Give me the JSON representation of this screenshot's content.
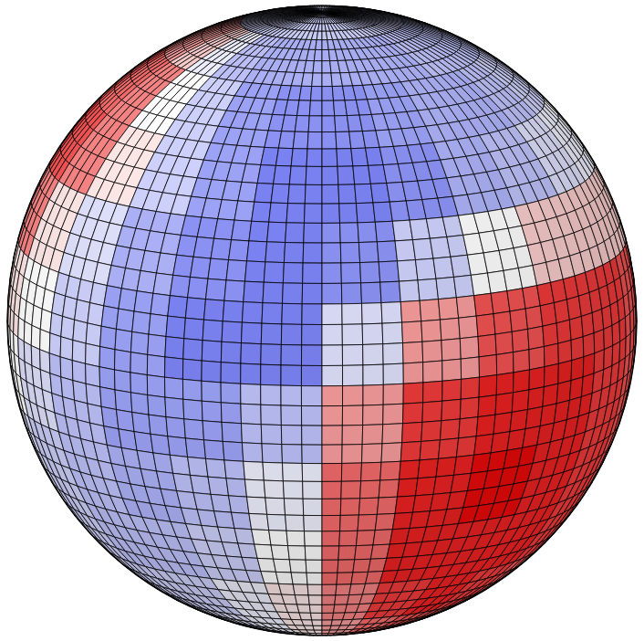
{
  "chart_data": {
    "type": "sphere",
    "grid": true,
    "tick_labels": false,
    "clim": [
      -1,
      1
    ],
    "cap": -0.3,
    "lat": [
      67.5,
      52.5,
      37.5,
      22.5,
      7.5,
      -7.5,
      -22.5,
      -37.5,
      -52.5,
      -67.5,
      -82.5
    ],
    "lon": [
      -127.5,
      -112.5,
      -97.5,
      -82.5,
      -67.5,
      -52.5,
      -37.5,
      -22.5,
      -7.5,
      7.5,
      22.5,
      37.5,
      52.5,
      67.5,
      82.5,
      97.5,
      112.5,
      127.5
    ],
    "cells": [
      [
        0.5,
        0.5,
        0.5,
        0.4,
        0.2,
        -0.1,
        -0.4,
        -0.5,
        -0.5,
        -0.5,
        -0.5,
        -0.5,
        -0.4,
        -0.4,
        -0.4,
        -0.4,
        -0.3,
        -0.3
      ],
      [
        0.7,
        0.7,
        0.7,
        0.6,
        0.5,
        0.0,
        -0.3,
        -0.6,
        -0.7,
        -0.7,
        -0.6,
        -0.5,
        -0.5,
        -0.4,
        -0.3,
        -0.3,
        -0.3,
        -0.2
      ],
      [
        0.8,
        0.8,
        0.8,
        0.7,
        0.5,
        0.1,
        -0.3,
        -0.6,
        -0.8,
        -0.8,
        -0.7,
        -0.5,
        -0.4,
        -0.2,
        -0.1,
        0.0,
        0.1,
        0.1
      ],
      [
        0.6,
        0.6,
        0.6,
        0.5,
        0.1,
        -0.2,
        -0.5,
        -0.7,
        -0.8,
        -0.7,
        -0.3,
        0.0,
        0.2,
        0.2,
        0.2,
        0.2,
        0.2,
        0.2
      ],
      [
        0.2,
        0.2,
        0.2,
        0.1,
        0.0,
        -0.3,
        -0.6,
        -0.8,
        -0.8,
        -0.2,
        0.4,
        0.7,
        0.8,
        0.8,
        0.7,
        0.6,
        0.5,
        0.5
      ],
      [
        0.0,
        0.0,
        0.0,
        0.0,
        -0.2,
        -0.4,
        -0.6,
        -0.6,
        -0.4,
        0.4,
        0.8,
        0.9,
        0.9,
        0.8,
        0.7,
        0.6,
        0.5,
        0.5
      ],
      [
        -0.1,
        -0.1,
        -0.1,
        -0.2,
        -0.3,
        -0.4,
        -0.5,
        -0.4,
        -0.1,
        0.6,
        0.9,
        1.0,
        0.9,
        0.8,
        0.7,
        0.6,
        0.5,
        0.5
      ],
      [
        -0.2,
        -0.2,
        -0.2,
        -0.2,
        -0.3,
        -0.4,
        -0.4,
        -0.3,
        0.0,
        0.6,
        0.9,
        0.9,
        0.9,
        0.8,
        0.7,
        0.6,
        0.5,
        0.5
      ],
      [
        -0.2,
        -0.2,
        -0.2,
        -0.2,
        -0.3,
        -0.3,
        -0.3,
        -0.1,
        0.1,
        0.5,
        0.8,
        0.9,
        0.8,
        0.7,
        0.6,
        0.5,
        0.5,
        0.5
      ],
      [
        -0.1,
        -0.1,
        -0.1,
        -0.1,
        -0.2,
        -0.2,
        -0.2,
        -0.1,
        0.1,
        0.4,
        0.6,
        0.7,
        0.7,
        0.6,
        0.5,
        0.5,
        0.5,
        0.5
      ],
      [
        -0.1,
        -0.1,
        -0.1,
        -0.1,
        -0.1,
        -0.1,
        -0.1,
        -0.1,
        0.0,
        0.2,
        0.3,
        0.4,
        0.4,
        0.4,
        0.4,
        0.4,
        0.4,
        0.4
      ]
    ]
  }
}
